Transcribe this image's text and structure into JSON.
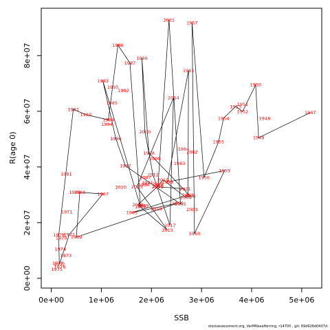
{
  "footer": "stockassessment.org, VarMNseaHerring, r14700 , git: 69d926d0437d",
  "chart_data": {
    "type": "line",
    "xlabel": "SSB",
    "ylabel": "R(age 0)",
    "xlim": [
      -200000,
      5400000
    ],
    "ylim": [
      -3500000,
      97000000
    ],
    "xticks": [
      0,
      1000000,
      2000000,
      3000000,
      4000000,
      5000000
    ],
    "xtick_labels": [
      "0e+00",
      "1e+06",
      "2e+06",
      "3e+06",
      "4e+06",
      "5e+06"
    ],
    "yticks": [
      0,
      20000000,
      40000000,
      60000000,
      80000000
    ],
    "ytick_labels": [
      "0e+00",
      "2e+07",
      "4e+07",
      "6e+07",
      "8e+07"
    ],
    "grid": false,
    "points": [
      {
        "year": "1947",
        "x": 5170000,
        "y": 59500000
      },
      {
        "year": "1948",
        "x": 4260000,
        "y": 57500000
      },
      {
        "year": "1949",
        "x": 4140000,
        "y": 50500000
      },
      {
        "year": "1950",
        "x": 4080000,
        "y": 69500000
      },
      {
        "year": "1951",
        "x": 3820000,
        "y": 62500000
      },
      {
        "year": "1952",
        "x": 3820000,
        "y": 59900000
      },
      {
        "year": "1953",
        "x": 3680000,
        "y": 61700000
      },
      {
        "year": "1954",
        "x": 3440000,
        "y": 57500000
      },
      {
        "year": "1955",
        "x": 3340000,
        "y": 49000000
      },
      {
        "year": "1956",
        "x": 3050000,
        "y": 36200000
      },
      {
        "year": "1957",
        "x": 2810000,
        "y": 91800000
      },
      {
        "year": "1958",
        "x": 2320000,
        "y": 34600000
      },
      {
        "year": "1959",
        "x": 3460000,
        "y": 38700000
      },
      {
        "year": "1960",
        "x": 2860000,
        "y": 16100000
      },
      {
        "year": "1961",
        "x": 2740000,
        "y": 74600000
      },
      {
        "year": "1962",
        "x": 2730000,
        "y": 29900000
      },
      {
        "year": "1963",
        "x": 2560000,
        "y": 41300000
      },
      {
        "year": "1964",
        "x": 2640000,
        "y": 46500000
      },
      {
        "year": "1965",
        "x": 1610000,
        "y": 23600000
      },
      {
        "year": "1966",
        "x": 2520000,
        "y": 27000000
      },
      {
        "year": "1967",
        "x": 1030000,
        "y": 30300000
      },
      {
        "year": "1968",
        "x": 570000,
        "y": 30900000
      },
      {
        "year": "1969",
        "x": 500000,
        "y": 14800000
      },
      {
        "year": "1970",
        "x": 200000,
        "y": 14500000
      },
      {
        "year": "1971",
        "x": 310000,
        "y": 23900000
      },
      {
        "year": "1972",
        "x": 360000,
        "y": 15700000
      },
      {
        "year": "1973",
        "x": 290000,
        "y": 8200000
      },
      {
        "year": "1974",
        "x": 180000,
        "y": 10500000
      },
      {
        "year": "1975",
        "x": 110000,
        "y": 3300000
      },
      {
        "year": "1976",
        "x": 170000,
        "y": 4100000
      },
      {
        "year": "1977",
        "x": 160000,
        "y": 5000000
      },
      {
        "year": "1978",
        "x": 130000,
        "y": 5500000
      },
      {
        "year": "1979",
        "x": 150000,
        "y": 15600000
      },
      {
        "year": "1980",
        "x": 470000,
        "y": 30900000
      },
      {
        "year": "1981",
        "x": 300000,
        "y": 37400000
      },
      {
        "year": "1982",
        "x": 440000,
        "y": 60700000
      },
      {
        "year": "1983",
        "x": 690000,
        "y": 58800000
      },
      {
        "year": "1984",
        "x": 1140000,
        "y": 56900000
      },
      {
        "year": "1985",
        "x": 1210000,
        "y": 63000000
      },
      {
        "year": "1986",
        "x": 1330000,
        "y": 83800000
      },
      {
        "year": "1987",
        "x": 1570000,
        "y": 77300000
      },
      {
        "year": "1988",
        "x": 1780000,
        "y": 25700000
      },
      {
        "year": "1989",
        "x": 1830000,
        "y": 26100000
      },
      {
        "year": "1990",
        "x": 1850000,
        "y": 33600000
      },
      {
        "year": "1991",
        "x": 1920000,
        "y": 34300000
      },
      {
        "year": "1992",
        "x": 1440000,
        "y": 67400000
      },
      {
        "year": "1993",
        "x": 1030000,
        "y": 70900000
      },
      {
        "year": "1994",
        "x": 1110000,
        "y": 55400000
      },
      {
        "year": "1995",
        "x": 1230000,
        "y": 68700000
      },
      {
        "year": "1996",
        "x": 1290000,
        "y": 50100000
      },
      {
        "year": "1997",
        "x": 1480000,
        "y": 40400000
      },
      {
        "year": "1998",
        "x": 1950000,
        "y": 45000000
      },
      {
        "year": "1999",
        "x": 1810000,
        "y": 79100000
      },
      {
        "year": "2000",
        "x": 1870000,
        "y": 52600000
      },
      {
        "year": "2001",
        "x": 2350000,
        "y": 92800000
      },
      {
        "year": "2002",
        "x": 2810000,
        "y": 45300000
      },
      {
        "year": "2003",
        "x": 2810000,
        "y": 24700000
      },
      {
        "year": "2004",
        "x": 2690000,
        "y": 29000000
      },
      {
        "year": "2005",
        "x": 2580000,
        "y": 26700000
      },
      {
        "year": "2006",
        "x": 2770000,
        "y": 29600000
      },
      {
        "year": "2007",
        "x": 1880000,
        "y": 36200000
      },
      {
        "year": "2008",
        "x": 2130000,
        "y": 33900000
      },
      {
        "year": "2009",
        "x": 2070000,
        "y": 43000000
      },
      {
        "year": "2010",
        "x": 2230000,
        "y": 35400000
      },
      {
        "year": "2011",
        "x": 2120000,
        "y": 32900000
      },
      {
        "year": "2012",
        "x": 2030000,
        "y": 37200000
      },
      {
        "year": "2013",
        "x": 1710000,
        "y": 32900000
      },
      {
        "year": "2014",
        "x": 2440000,
        "y": 64800000
      },
      {
        "year": "2015",
        "x": 2320000,
        "y": 17300000
      },
      {
        "year": "2016",
        "x": 2130000,
        "y": 33100000
      },
      {
        "year": "2017",
        "x": 2370000,
        "y": 19100000
      },
      {
        "year": "2018",
        "x": 1730000,
        "y": 26400000
      },
      {
        "year": "2019",
        "x": 2100000,
        "y": 25000000
      },
      {
        "year": "2020",
        "x": 1390000,
        "y": 32800000
      },
      {
        "year": "2021",
        "x": 2670000,
        "y": 32100000
      }
    ],
    "path": [
      "1947",
      "1949",
      "1950",
      "1952",
      "1953",
      "1954",
      "1955",
      "1956",
      "1957",
      "1960",
      "1959",
      "1958",
      "1961",
      "1962",
      "1965",
      "1966",
      "1969",
      "1968",
      "1967",
      "1972",
      "1977",
      "1979",
      "1982",
      "1983",
      "1984",
      "1986",
      "1987",
      "1988",
      "1993",
      "1996",
      "1997",
      "2005",
      "2001",
      "2016",
      "2018",
      "2015",
      "2013",
      "2014",
      "2017",
      "2012",
      "2000",
      "1999",
      "1998",
      "2006",
      "2004",
      "2010",
      "2011",
      "2021"
    ]
  }
}
